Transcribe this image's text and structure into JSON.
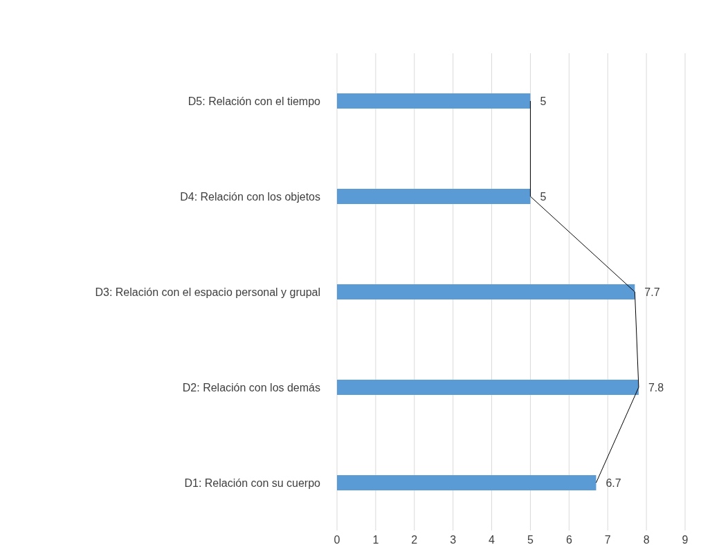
{
  "chart_data": {
    "type": "bar",
    "orientation": "horizontal",
    "categories": [
      "D5: Relación con el tiempo",
      "D4: Relación con los objetos",
      "D3: Relación con el espacio personal y grupal",
      "D2: Relación con los demás",
      "D1: Relación con su cuerpo"
    ],
    "series": [
      {
        "color": "#5b9bd5",
        "values": [
          5,
          5,
          7.7,
          7.8,
          6.7
        ],
        "value_labels": [
          "5",
          "5",
          "7.7",
          "7.8",
          "6.7"
        ]
      },
      {
        "type": "line",
        "color": "#000000",
        "values": [
          5,
          5,
          7.7,
          7.8,
          6.7
        ]
      }
    ],
    "xlim": [
      0,
      9
    ],
    "xticks": [
      0,
      1,
      2,
      3,
      4,
      5,
      6,
      7,
      8,
      9
    ],
    "grid": "x",
    "marker": "none",
    "line_style": "solid"
  }
}
